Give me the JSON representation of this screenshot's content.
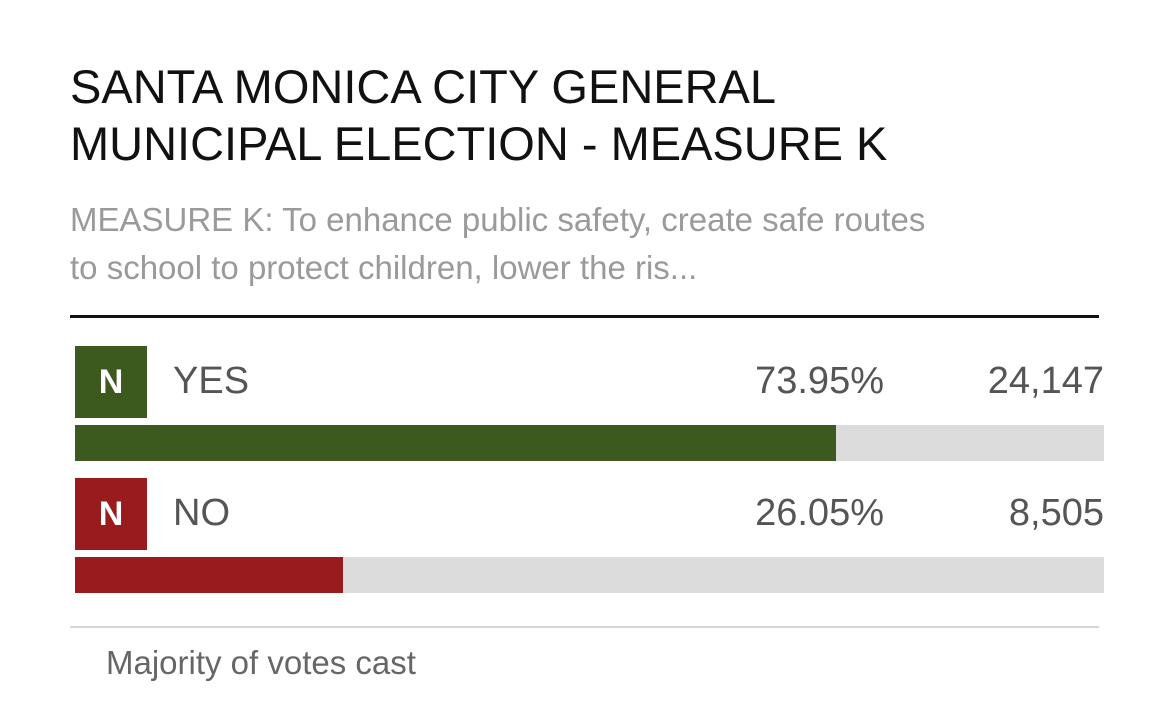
{
  "election": {
    "title_line1": "SANTA MONICA CITY GENERAL",
    "title_line2": "MUNICIPAL ELECTION - MEASURE K",
    "description_line1": "MEASURE K: To enhance public safety, create safe routes",
    "description_line2": "to school to protect children, lower the ris..."
  },
  "results": [
    {
      "badge": "N",
      "choice": "YES",
      "percent_text": "73.95%",
      "votes": "24,147",
      "share": 73.95,
      "color": "#3d5a1e"
    },
    {
      "badge": "N",
      "choice": "NO",
      "percent_text": "26.05%",
      "votes": "8,505",
      "share": 26.05,
      "color": "#9a1b1e"
    }
  ],
  "footer": {
    "note": "Majority of votes cast"
  },
  "colors": {
    "track": "#dcdcdc",
    "title": "#111111",
    "description": "#9a9a9a"
  }
}
